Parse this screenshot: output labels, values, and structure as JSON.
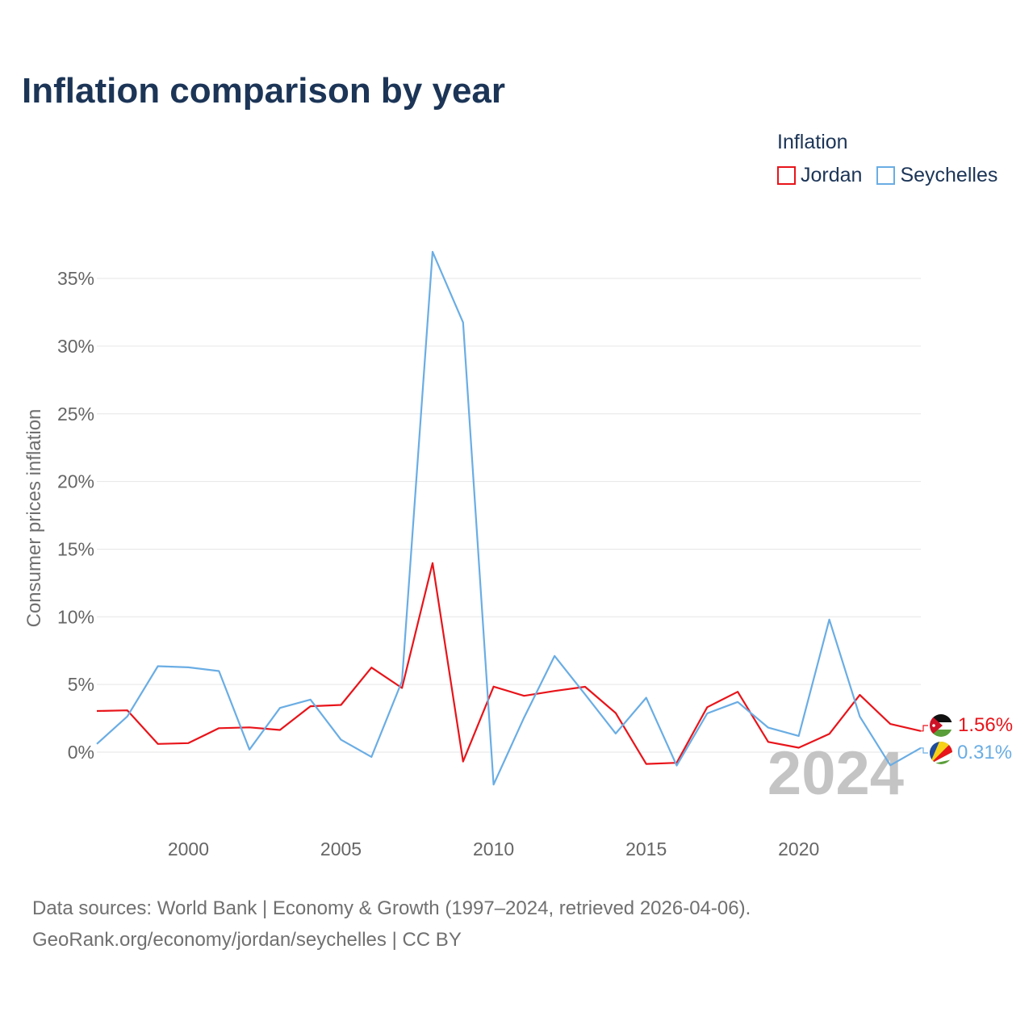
{
  "title": "Inflation comparison by year",
  "legend": {
    "title": "Inflation",
    "items": [
      {
        "label": "Jordan",
        "color": "#e8141a"
      },
      {
        "label": "Seychelles",
        "color": "#6aade4"
      }
    ]
  },
  "source": {
    "line1": "Data sources: World Bank | Economy & Growth (1997–2024, retrieved 2026-04-06).",
    "line2": "GeoRank.org/economy/jordan/seychelles | CC BY"
  },
  "chart_data": {
    "type": "line",
    "title": "Inflation comparison by year",
    "xlabel": "",
    "ylabel": "Consumer prices inflation",
    "xlim": [
      1997,
      2024
    ],
    "ylim": [
      -5,
      37
    ],
    "yticks": [
      0,
      5,
      10,
      15,
      20,
      25,
      30,
      35
    ],
    "ytick_labels": [
      "0%",
      "5%",
      "10%",
      "15%",
      "20%",
      "25%",
      "30%",
      "35%"
    ],
    "xticks": [
      2000,
      2005,
      2010,
      2015,
      2020
    ],
    "xtick_labels": [
      "2000",
      "2005",
      "2010",
      "2015",
      "2020"
    ],
    "grid": true,
    "legend_position": "top-right",
    "current_year_label": "2024",
    "x": [
      1997,
      1998,
      1999,
      2000,
      2001,
      2002,
      2003,
      2004,
      2005,
      2006,
      2007,
      2008,
      2009,
      2010,
      2011,
      2012,
      2013,
      2014,
      2015,
      2016,
      2017,
      2018,
      2019,
      2020,
      2021,
      2022,
      2023,
      2024
    ],
    "series": [
      {
        "name": "Jordan",
        "color": "#e8141a",
        "end_label": "1.56%",
        "values": [
          3.04,
          3.09,
          0.61,
          0.67,
          1.77,
          1.83,
          1.64,
          3.39,
          3.49,
          6.25,
          4.74,
          13.97,
          -0.69,
          4.84,
          4.16,
          4.52,
          4.83,
          2.89,
          -0.87,
          -0.79,
          3.32,
          4.46,
          0.76,
          0.33,
          1.35,
          4.23,
          2.08,
          1.56
        ]
      },
      {
        "name": "Seychelles",
        "color": "#6aade4",
        "end_label": "0.31%",
        "values": [
          0.61,
          2.64,
          6.35,
          6.27,
          5.99,
          0.19,
          3.27,
          3.88,
          0.92,
          -0.35,
          5.25,
          36.97,
          31.75,
          -2.4,
          2.56,
          7.11,
          4.27,
          1.38,
          4.02,
          -0.99,
          2.86,
          3.71,
          1.81,
          1.2,
          9.8,
          2.63,
          -0.97,
          0.31
        ]
      }
    ]
  }
}
